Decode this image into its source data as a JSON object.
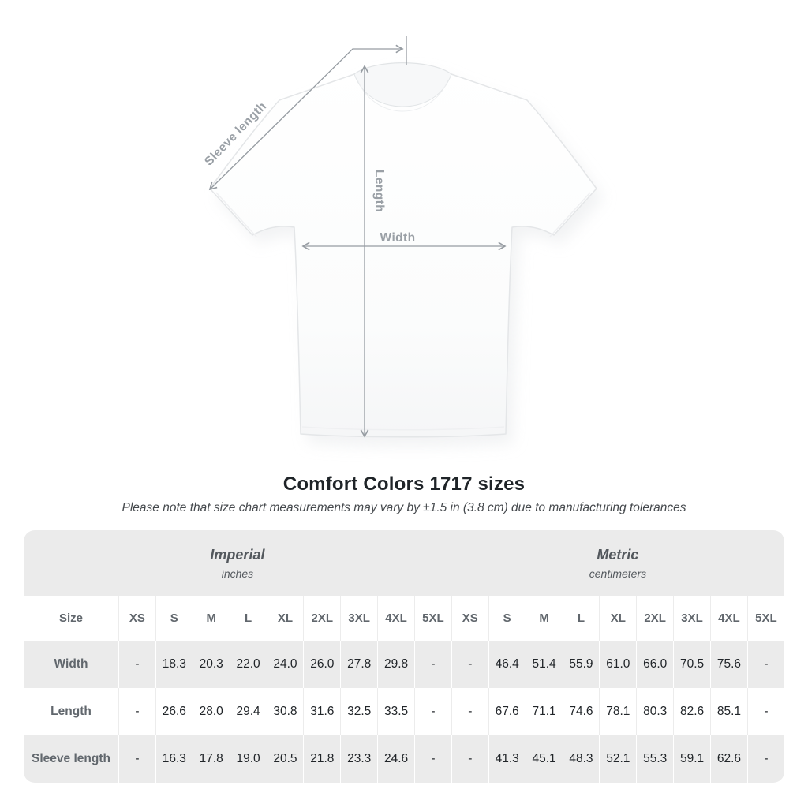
{
  "diagram": {
    "sleeve_label": "Sleeve length",
    "length_label": "Length",
    "width_label": "Width"
  },
  "chart_data": {
    "type": "table",
    "title": "Comfort Colors 1717 sizes",
    "note": "Please note that size chart measurements may vary by ±1.5 in (3.8 cm) due to manufacturing tolerances",
    "unit_groups": [
      {
        "label": "Imperial",
        "sublabel": "inches"
      },
      {
        "label": "Metric",
        "sublabel": "centimeters"
      }
    ],
    "size_column_header": "Size",
    "size_labels": [
      "XS",
      "S",
      "M",
      "L",
      "XL",
      "2XL",
      "3XL",
      "4XL",
      "5XL"
    ],
    "rows": [
      {
        "label": "Width",
        "imperial": [
          "-",
          "18.3",
          "20.3",
          "22.0",
          "24.0",
          "26.0",
          "27.8",
          "29.8",
          "-"
        ],
        "metric": [
          "-",
          "46.4",
          "51.4",
          "55.9",
          "61.0",
          "66.0",
          "70.5",
          "75.6",
          "-"
        ]
      },
      {
        "label": "Length",
        "imperial": [
          "-",
          "26.6",
          "28.0",
          "29.4",
          "30.8",
          "31.6",
          "32.5",
          "33.5",
          "-"
        ],
        "metric": [
          "-",
          "67.6",
          "71.1",
          "74.6",
          "78.1",
          "80.3",
          "82.6",
          "85.1",
          "-"
        ]
      },
      {
        "label": "Sleeve length",
        "imperial": [
          "-",
          "16.3",
          "17.8",
          "19.0",
          "20.5",
          "21.8",
          "23.3",
          "24.6",
          "-"
        ],
        "metric": [
          "-",
          "41.3",
          "45.1",
          "48.3",
          "52.1",
          "55.3",
          "59.1",
          "62.6",
          "-"
        ]
      }
    ]
  },
  "colors": {
    "band_gray": "#ebebeb",
    "header_text": "#61676d",
    "value_text": "#212529",
    "measure_line": "#969ca2",
    "measure_label": "#9aa0a6"
  }
}
